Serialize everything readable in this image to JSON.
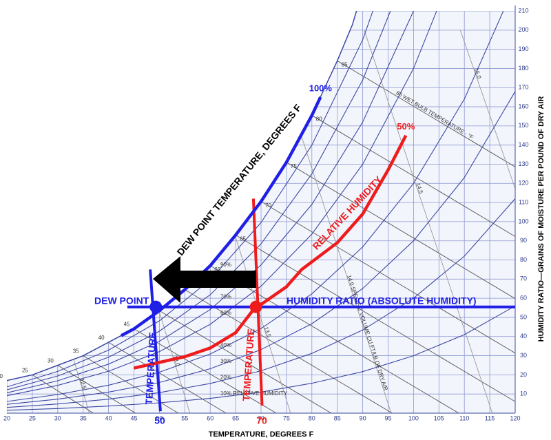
{
  "chart_data": {
    "type": "psychrometric",
    "x_label": "TEMPERATURE, DEGREES F",
    "y2_label": "HUMIDITY RATIO—GRAINS OF MOISTURE PER POUND OF DRY AIR",
    "xlim": [
      20,
      120
    ],
    "xticks": [
      20,
      25,
      30,
      35,
      40,
      45,
      50,
      55,
      60,
      65,
      70,
      75,
      80,
      85,
      90,
      95,
      100,
      105,
      110,
      115,
      120
    ],
    "y2lim": [
      0,
      210
    ],
    "y2ticks": [
      10,
      20,
      30,
      40,
      50,
      60,
      70,
      80,
      90,
      100,
      110,
      120,
      130,
      140,
      150,
      160,
      170,
      180,
      190,
      200,
      210
    ],
    "grid": true,
    "saturation_curve": {
      "x": [
        20,
        25,
        30,
        35,
        40,
        45,
        50,
        55,
        60,
        65,
        70,
        75,
        80,
        85,
        88,
        89
      ],
      "values": [
        17,
        20,
        25,
        30,
        37,
        44,
        53.5,
        64.5,
        77,
        93,
        110.5,
        131,
        155.5,
        184,
        203,
        212
      ],
      "labels_left": [
        20,
        25,
        30,
        35,
        40,
        45
      ],
      "labels_right": [
        60,
        65,
        70,
        75,
        80,
        85
      ]
    },
    "rh_x": [
      20,
      30,
      40,
      50,
      60,
      70,
      80,
      90,
      100,
      110,
      120
    ],
    "rh_curves": [
      {
        "label": "10% RELATIVE HUMIDITY",
        "values": [
          1.5,
          2.4,
          3.7,
          5.4,
          7.7,
          11,
          15.6,
          21.7,
          30,
          41,
          56
        ]
      },
      {
        "label": "20%",
        "values": [
          3,
          4.8,
          7.3,
          10.7,
          15.5,
          22.1,
          31.2,
          43.4,
          60,
          82,
          112
        ]
      },
      {
        "label": "30%",
        "values": [
          4.6,
          7.3,
          11,
          16,
          23.2,
          33.2,
          46.7,
          65.1,
          90,
          123,
          168
        ]
      },
      {
        "label": "40%",
        "values": [
          6.1,
          9.7,
          14.6,
          21.4,
          30.9,
          44.2,
          62.3,
          86.8,
          120,
          164,
          224
        ]
      },
      {
        "label": "60%",
        "values": [
          9.1,
          14.5,
          21.9,
          32.1,
          46.4,
          66.3,
          93.5,
          130,
          180,
          246,
          336
        ]
      },
      {
        "label": "70%",
        "values": [
          10.6,
          16.9,
          25.6,
          37.5,
          54.1,
          77.4,
          109,
          152,
          210,
          287,
          392
        ]
      },
      {
        "label": "80%",
        "values": [
          12.2,
          19.4,
          29.2,
          42.8,
          61.8,
          88.4,
          125,
          174,
          240,
          328,
          448
        ]
      },
      {
        "label": "90%",
        "values": [
          13.7,
          21.8,
          32.9,
          48.2,
          69.6,
          99.5,
          140,
          195,
          270,
          369,
          504
        ]
      }
    ],
    "wet_bulb_lines": {
      "start_x": [
        25,
        30,
        35,
        40,
        45,
        50,
        55,
        60,
        65,
        70,
        75,
        80,
        85
      ],
      "end_x": [
        37,
        45.3,
        53.7,
        63.1,
        73,
        83.8,
        95.8,
        108.9,
        123.8,
        139.8,
        157.8,
        178.3,
        201.3
      ],
      "label": "85 WET BULB TEMPERATURE - °F"
    },
    "volume_lines": {
      "labels": [
        "12.5",
        "13.0",
        "13.5",
        "14.0 SPECIFIC VOLUME CU FT/LB OF DRY AIR",
        "14.5",
        "15.0"
      ],
      "x_at_0": [
        36.2,
        56,
        75.8,
        95.6,
        115.5,
        135.3
      ],
      "x_at_top": [
        14.4,
        33.3,
        52.3,
        71.2,
        90.3,
        109.2
      ],
      "top_value": 200
    },
    "series": [
      {
        "name": "100%",
        "color": "#1f1fe6",
        "x": [
          42.5,
          45,
          50,
          55,
          60,
          65,
          70,
          75,
          80,
          81.7
        ],
        "values": [
          40.5,
          44,
          53.5,
          64.5,
          77,
          93,
          110.5,
          131,
          155.5,
          165
        ]
      },
      {
        "name": "50%",
        "color": "#ee1c1c",
        "x": [
          45,
          50,
          55,
          60,
          65,
          68.5,
          75,
          78,
          85,
          90,
          95,
          98.5
        ],
        "values": [
          23.5,
          26.5,
          29.5,
          34,
          42,
          54,
          66,
          75,
          89,
          104,
          127,
          145
        ]
      }
    ],
    "guides": [
      {
        "color": "#1f1fe6",
        "x": [
          43.7,
          120
        ],
        "values": [
          55.5,
          55.5
        ]
      },
      {
        "color": "#1f1fe6",
        "x": [
          48.2,
          50.2
        ],
        "values": [
          75,
          1
        ]
      },
      {
        "color": "#ee1c1c",
        "x": [
          68.5,
          70.2
        ],
        "values": [
          112,
          4
        ]
      }
    ],
    "points": [
      {
        "color": "#1f1fe6",
        "x": 49.3,
        "value": 55.5
      },
      {
        "color": "#ee1c1c",
        "x": 69,
        "value": 55.5
      }
    ],
    "annotations": {
      "dew_point_temperature": "DEW POINT TEMPERATURE, DEGREES F",
      "dew_point": "DEW POINT",
      "humidity_ratio": "HUMIDITY RATIO (ABSOLUTE HUMIDITY)",
      "relative_humidity": "RELATIVE HUMIDITY",
      "temperature_dew": "TEMPERATURE",
      "temperature_dry": "TEMPERATURE",
      "dew_point_value": 50,
      "dry_bulb_value": 70
    }
  }
}
